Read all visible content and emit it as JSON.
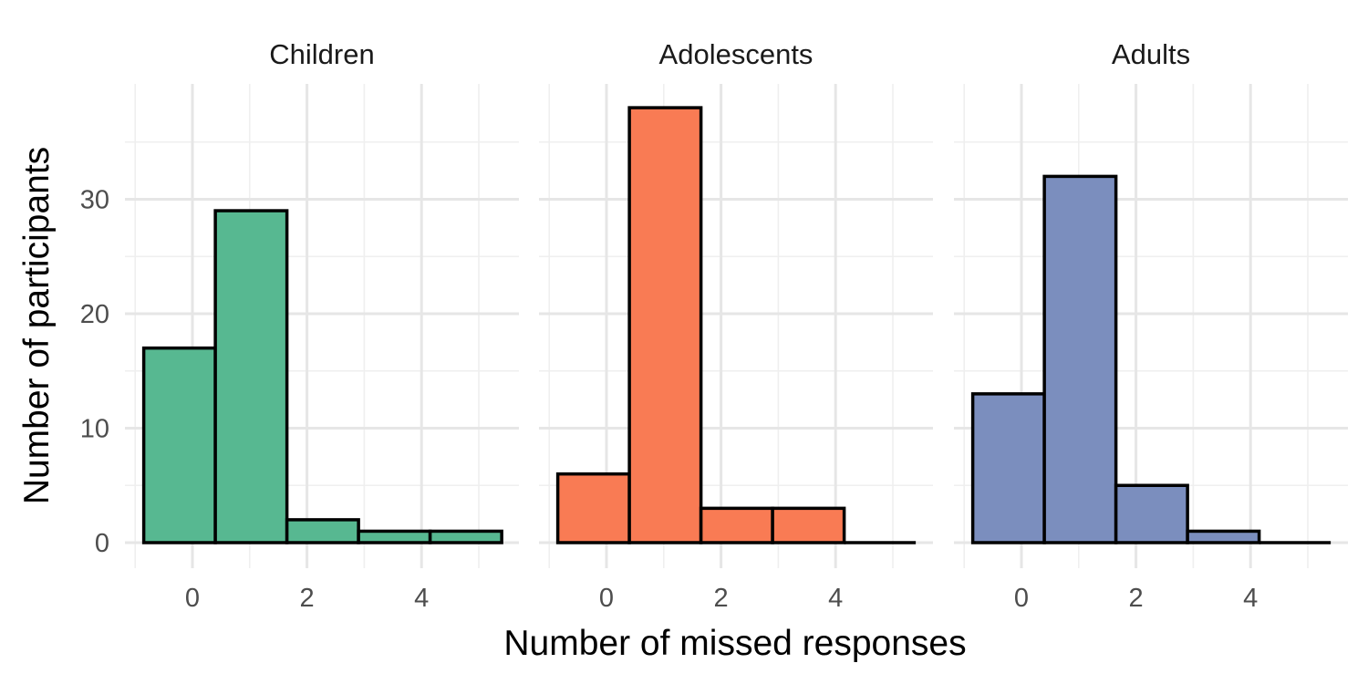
{
  "chart_data": {
    "type": "bar",
    "subtype": "faceted-histogram",
    "xlabel": "Number of missed responses",
    "ylabel": "Number of participants",
    "x_ticks": [
      0,
      2,
      4
    ],
    "y_ticks": [
      0,
      10,
      20,
      30
    ],
    "xlim": [
      -1,
      5.5
    ],
    "ylim": [
      0,
      38
    ],
    "bin_width": 1.25,
    "grid": true,
    "facets": [
      {
        "label": "Children",
        "color": "#57B891",
        "bins": [
          {
            "x_start": -0.85,
            "x_end": 0.4,
            "count": 17
          },
          {
            "x_start": 0.4,
            "x_end": 1.65,
            "count": 29
          },
          {
            "x_start": 1.65,
            "x_end": 2.9,
            "count": 2
          },
          {
            "x_start": 2.9,
            "x_end": 4.15,
            "count": 1
          },
          {
            "x_start": 4.15,
            "x_end": 5.4,
            "count": 1
          }
        ]
      },
      {
        "label": "Adolescents",
        "color": "#F97B54",
        "bins": [
          {
            "x_start": -0.85,
            "x_end": 0.4,
            "count": 6
          },
          {
            "x_start": 0.4,
            "x_end": 1.65,
            "count": 38
          },
          {
            "x_start": 1.65,
            "x_end": 2.9,
            "count": 3
          },
          {
            "x_start": 2.9,
            "x_end": 4.15,
            "count": 3
          },
          {
            "x_start": 4.15,
            "x_end": 5.4,
            "count": 0
          }
        ]
      },
      {
        "label": "Adults",
        "color": "#7B8EBE",
        "bins": [
          {
            "x_start": -0.85,
            "x_end": 0.4,
            "count": 13
          },
          {
            "x_start": 0.4,
            "x_end": 1.65,
            "count": 32
          },
          {
            "x_start": 1.65,
            "x_end": 2.9,
            "count": 5
          },
          {
            "x_start": 2.9,
            "x_end": 4.15,
            "count": 1
          },
          {
            "x_start": 4.15,
            "x_end": 5.4,
            "count": 0
          }
        ]
      }
    ]
  }
}
